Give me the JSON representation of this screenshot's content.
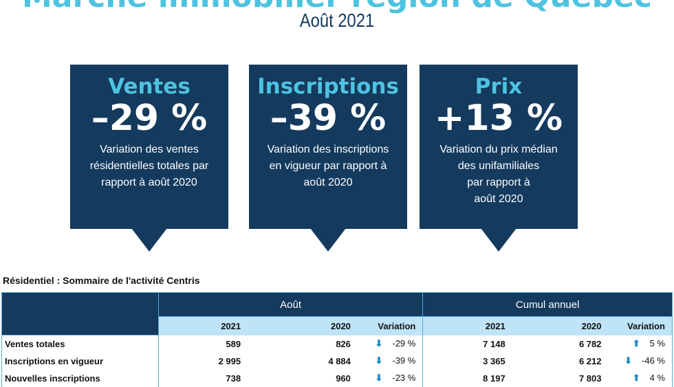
{
  "header": {
    "title": "Marché immobilier région de Québec",
    "subtitle": "Août 2021"
  },
  "cards": [
    {
      "heading": "Ventes",
      "value": "–29 %",
      "lines": [
        "Variation des ventes",
        "résidentielles totales par",
        "rapport à août 2020"
      ]
    },
    {
      "heading": "Inscriptions",
      "value": "–39 %",
      "lines": [
        "Variation des inscriptions",
        "en vigueur par rapport à",
        "août 2020"
      ]
    },
    {
      "heading": "Prix",
      "value": "+13 %",
      "lines": [
        "Variation du prix médian",
        "des unifamiliales",
        "par rapport à",
        "août 2020"
      ]
    }
  ],
  "table": {
    "title": "Résidentiel : Sommaire de l'activité Centris",
    "groups": [
      "Août",
      "Cumul annuel"
    ],
    "subheaders": [
      "2021",
      "2020",
      "Variation",
      "2021",
      "2020",
      "Variation"
    ],
    "rows": [
      {
        "label": "Ventes totales",
        "m2021": "589",
        "m2020": "826",
        "mdir": "down",
        "mvar": "-29 %",
        "c2021": "7 148",
        "c2020": "6 782",
        "cdir": "up",
        "cvar": "5 %"
      },
      {
        "label": "Inscriptions en vigueur",
        "m2021": "2 995",
        "m2020": "4 884",
        "mdir": "down",
        "mvar": "-39 %",
        "c2021": "3 365",
        "c2020": "6 212",
        "cdir": "down",
        "cvar": "-46 %"
      },
      {
        "label": "Nouvelles inscriptions",
        "m2021": "738",
        "m2020": "960",
        "mdir": "down",
        "mvar": "-23 %",
        "c2021": "8 197",
        "c2020": "7 803",
        "cdir": "up",
        "cvar": "4 %"
      }
    ]
  },
  "colors": {
    "navy": "#143a5e",
    "cyan": "#4ec3e0",
    "light_blue": "#bfe3f7",
    "arrow": "#1e88c8"
  }
}
